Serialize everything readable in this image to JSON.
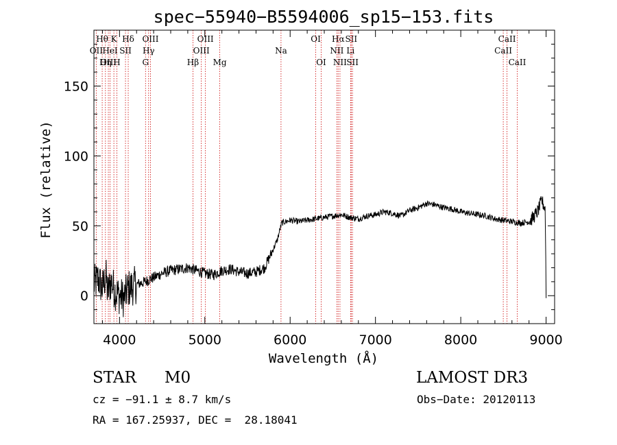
{
  "chart_data": {
    "type": "line",
    "title": "spec−55940−B5594006_sp15−153.fits",
    "xlabel": "Wavelength (Å)",
    "ylabel": "Flux (relative)",
    "xlim": [
      3700,
      9100
    ],
    "ylim": [
      -20,
      190
    ],
    "xticks": [
      4000,
      5000,
      6000,
      7000,
      8000,
      9000
    ],
    "yticks": [
      0,
      50,
      100,
      150
    ],
    "grid": false,
    "legend": "none",
    "series": [
      {
        "name": "flux",
        "x": [
          3700,
          3750,
          3800,
          3840,
          3860,
          3900,
          3950,
          4000,
          4050,
          4100,
          4200,
          4300,
          4400,
          4500,
          4600,
          4700,
          4800,
          4900,
          5000,
          5100,
          5200,
          5300,
          5400,
          5500,
          5600,
          5700,
          5800,
          5850,
          5900,
          5950,
          6000,
          6100,
          6200,
          6300,
          6400,
          6500,
          6600,
          6700,
          6800,
          6900,
          7000,
          7100,
          7200,
          7300,
          7400,
          7500,
          7600,
          7700,
          7800,
          7900,
          8000,
          8100,
          8200,
          8300,
          8400,
          8500,
          8600,
          8700,
          8800,
          8850,
          8900,
          8950,
          8990,
          9000
        ],
        "y": [
          8,
          12,
          5,
          15,
          2,
          10,
          3,
          0,
          -2,
          5,
          8,
          10,
          13,
          16,
          18,
          19,
          20,
          18,
          16,
          15,
          18,
          19,
          17,
          16,
          17,
          20,
          33,
          40,
          52,
          53,
          54,
          53,
          54,
          55,
          56,
          57,
          58,
          56,
          55,
          57,
          58,
          60,
          59,
          57,
          61,
          63,
          66,
          65,
          63,
          62,
          60,
          59,
          58,
          57,
          55,
          54,
          53,
          52,
          53,
          56,
          60,
          68,
          62,
          0
        ]
      }
    ],
    "spectral_lines": [
      {
        "label": "Hθ",
        "wavelength": 3797,
        "row": 1
      },
      {
        "label": "OII",
        "wavelength": 3727,
        "row": 2
      },
      {
        "label": "OIII",
        "wavelength": 3869,
        "row": 3
      },
      {
        "label": "K",
        "wavelength": 3934,
        "row": 1
      },
      {
        "label": "HeI",
        "wavelength": 3889,
        "row": 2
      },
      {
        "label": "Hη",
        "wavelength": 3835,
        "row": 3
      },
      {
        "label": "SII",
        "wavelength": 4070,
        "row": 2
      },
      {
        "label": "H",
        "wavelength": 3969,
        "row": 3
      },
      {
        "label": "Hδ",
        "wavelength": 4102,
        "row": 1
      },
      {
        "label": "OIII",
        "wavelength": 4363,
        "row": 1
      },
      {
        "label": "Hγ",
        "wavelength": 4341,
        "row": 2
      },
      {
        "label": "G",
        "wavelength": 4305,
        "row": 3
      },
      {
        "label": "Hβ",
        "wavelength": 4861,
        "row": 3
      },
      {
        "label": "OIII",
        "wavelength": 5007,
        "row": 1
      },
      {
        "label": "OIII",
        "wavelength": 4959,
        "row": 2
      },
      {
        "label": "Mg",
        "wavelength": 5175,
        "row": 3
      },
      {
        "label": "Na",
        "wavelength": 5893,
        "row": 2
      },
      {
        "label": "OI",
        "wavelength": 6300,
        "row": 1
      },
      {
        "label": "OI",
        "wavelength": 6364,
        "row": 3
      },
      {
        "label": "Hα",
        "wavelength": 6563,
        "row": 1
      },
      {
        "label": "SII",
        "wavelength": 6716,
        "row": 1
      },
      {
        "label": "NII",
        "wavelength": 6548,
        "row": 2
      },
      {
        "label": "Li",
        "wavelength": 6708,
        "row": 2
      },
      {
        "label": "NII",
        "wavelength": 6584,
        "row": 3
      },
      {
        "label": "SII",
        "wavelength": 6731,
        "row": 3
      },
      {
        "label": "CaII",
        "wavelength": 8542,
        "row": 1
      },
      {
        "label": "CaII",
        "wavelength": 8498,
        "row": 2
      },
      {
        "label": "CaII",
        "wavelength": 8662,
        "row": 3
      }
    ],
    "line_color": "#cc0000"
  },
  "info": {
    "class_label": "STAR",
    "subclass": "M0",
    "survey": "LAMOST DR3",
    "cz": "cz = −91.1 ± 8.7 km/s",
    "obs_date": "Obs−Date: 20120113",
    "radec": "RA = 167.25937, DEC =  28.18041"
  }
}
